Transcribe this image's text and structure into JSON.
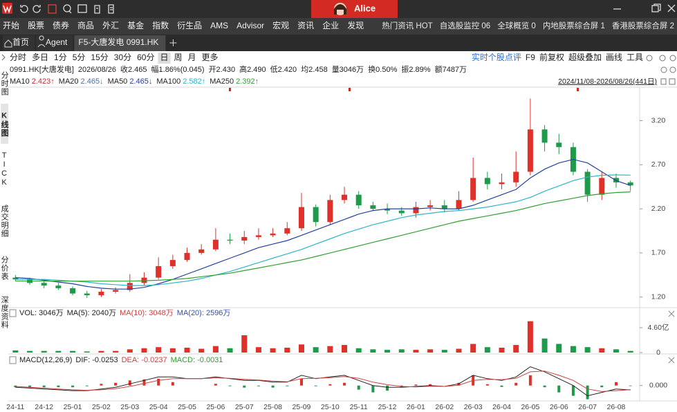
{
  "title_bar": {
    "user": "Alice"
  },
  "menu": [
    "开始",
    "股票",
    "债券",
    "商品",
    "外汇",
    "基金",
    "指数",
    "衍生品",
    "AMS",
    "Advisor",
    "宏观",
    "资讯",
    "企业",
    "发现"
  ],
  "menu_right": [
    "热门资讯 HOT",
    "自选股监控 06",
    "全球概览 0",
    "内地股票综合屏 1",
    "香港股票综合屏 2"
  ],
  "tabs": [
    "首页",
    "Agent",
    "F5-大唐发电 0991.HK"
  ],
  "periods": [
    "分时",
    "多日",
    "1分",
    "5分",
    "15分",
    "30分",
    "60分",
    "日",
    "周",
    "月",
    "更多"
  ],
  "active_period": 7,
  "tools": [
    "实时个股点评",
    "F9",
    "前复权",
    "超级叠加",
    "画线",
    "工具"
  ],
  "sidebar": [
    "分时图",
    "K线图",
    "TICK",
    "成交明细",
    "分价表",
    "深度资料"
  ],
  "sidebar_active": 1,
  "quote": [
    "0991.HK[大唐发电]",
    "2026/08/26",
    "收2.465",
    "幅1.86%(0.045)",
    "开2.430",
    "高2.490",
    "低2.420",
    "均2.458",
    "量3046万",
    "换0.50%",
    "振2.89%",
    "额7487万"
  ],
  "chart_data": [
    {
      "type": "candlestick",
      "date_range": "2024/11/08-2026/08/26(441日)",
      "categories": [
        "24-11",
        null,
        "24-12",
        null,
        "25-01",
        null,
        "25-02",
        null,
        "25-03",
        null,
        "25-04",
        null,
        "25-05",
        null,
        "25-06",
        null,
        "25-07",
        null,
        "25-08",
        null,
        "25-09",
        null,
        "25-10",
        null,
        "25-11",
        null,
        "25-12",
        null,
        "26-01",
        null,
        "26-02",
        null,
        "26-03",
        null,
        "26-04",
        null,
        "26-05",
        null,
        "26-06",
        null,
        "26-07",
        null,
        "26-08",
        null
      ],
      "open": [
        1.42,
        1.4,
        1.36,
        1.33,
        1.3,
        1.24,
        1.22,
        1.26,
        1.28,
        1.36,
        1.42,
        1.55,
        1.62,
        1.7,
        1.74,
        1.85,
        1.84,
        1.88,
        1.9,
        1.92,
        1.98,
        2.22,
        2.05,
        2.3,
        2.36,
        2.24,
        2.2,
        2.18,
        2.15,
        2.22,
        2.24,
        2.2,
        2.3,
        2.55,
        2.48,
        2.5,
        2.62,
        3.1,
        2.95,
        2.9,
        2.62,
        2.36,
        2.55,
        2.5
      ],
      "high": [
        1.45,
        1.42,
        1.38,
        1.36,
        1.32,
        1.27,
        1.29,
        1.31,
        1.46,
        1.48,
        1.65,
        1.68,
        1.76,
        1.8,
        1.98,
        1.92,
        1.95,
        1.98,
        1.98,
        2.05,
        2.38,
        2.25,
        2.36,
        2.45,
        2.4,
        2.28,
        2.26,
        2.22,
        2.28,
        2.3,
        2.3,
        2.4,
        2.78,
        2.62,
        2.6,
        2.85,
        3.45,
        3.15,
        3.05,
        2.95,
        2.65,
        2.62,
        2.6,
        2.52
      ],
      "low": [
        1.38,
        1.34,
        1.3,
        1.28,
        1.22,
        1.19,
        1.2,
        1.24,
        1.26,
        1.33,
        1.4,
        1.52,
        1.6,
        1.68,
        1.72,
        1.8,
        1.8,
        1.85,
        1.88,
        1.9,
        1.95,
        2.0,
        2.02,
        2.26,
        2.2,
        2.18,
        2.14,
        2.12,
        2.1,
        2.18,
        2.16,
        2.18,
        2.28,
        2.42,
        2.42,
        2.45,
        2.58,
        2.85,
        2.82,
        2.58,
        2.28,
        2.3,
        2.44,
        2.4
      ],
      "close": [
        1.4,
        1.36,
        1.33,
        1.3,
        1.24,
        1.22,
        1.26,
        1.28,
        1.36,
        1.42,
        1.55,
        1.62,
        1.7,
        1.74,
        1.85,
        1.84,
        1.88,
        1.9,
        1.92,
        1.98,
        2.22,
        2.05,
        2.3,
        2.36,
        2.24,
        2.2,
        2.18,
        2.15,
        2.22,
        2.24,
        2.2,
        2.3,
        2.55,
        2.48,
        2.5,
        2.62,
        3.1,
        2.95,
        2.9,
        2.62,
        2.36,
        2.55,
        2.5,
        2.465
      ],
      "up_color": "#e0302a",
      "down_color": "#1f9a4a",
      "ylim": [
        1.08,
        3.58
      ],
      "yticks": [
        {
          "value": 1.2,
          "label": "1.20"
        },
        {
          "value": 1.7,
          "label": "1.70"
        },
        {
          "value": 2.2,
          "label": "2.20"
        },
        {
          "value": 2.7,
          "label": "2.70"
        },
        {
          "value": 3.2,
          "label": "3.20"
        }
      ],
      "series": [
        {
          "name": "MA10",
          "color": "#c03030",
          "label": "2.423↑"
        },
        {
          "name": "MA20",
          "color": "#4f6f9f",
          "label": "2.465↓"
        },
        {
          "name": "MA50",
          "color": "#2040a0",
          "label": "2.465↓",
          "values": [
            1.42,
            1.41,
            1.39,
            1.37,
            1.35,
            1.32,
            1.3,
            1.29,
            1.29,
            1.31,
            1.35,
            1.4,
            1.46,
            1.52,
            1.58,
            1.64,
            1.7,
            1.76,
            1.8,
            1.84,
            1.9,
            1.96,
            2.02,
            2.08,
            2.14,
            2.18,
            2.2,
            2.2,
            2.2,
            2.21,
            2.2,
            2.2,
            2.24,
            2.3,
            2.36,
            2.42,
            2.55,
            2.65,
            2.72,
            2.76,
            2.72,
            2.62,
            2.52,
            2.465
          ]
        },
        {
          "name": "MA100",
          "color": "#2fb4c8",
          "label": "2.582↑",
          "values": [
            1.4,
            1.4,
            1.4,
            1.39,
            1.38,
            1.37,
            1.35,
            1.34,
            1.33,
            1.33,
            1.34,
            1.36,
            1.38,
            1.41,
            1.45,
            1.49,
            1.54,
            1.59,
            1.64,
            1.69,
            1.74,
            1.8,
            1.86,
            1.92,
            1.97,
            2.02,
            2.06,
            2.1,
            2.13,
            2.15,
            2.17,
            2.18,
            2.2,
            2.22,
            2.25,
            2.28,
            2.33,
            2.4,
            2.46,
            2.52,
            2.56,
            2.58,
            2.585,
            2.582
          ]
        },
        {
          "name": "MA250",
          "color": "#2fa02f",
          "label": "2.392↑",
          "values": [
            1.38,
            1.38,
            1.38,
            1.38,
            1.38,
            1.38,
            1.38,
            1.38,
            1.38,
            1.385,
            1.39,
            1.4,
            1.41,
            1.43,
            1.45,
            1.47,
            1.5,
            1.53,
            1.56,
            1.59,
            1.62,
            1.66,
            1.7,
            1.74,
            1.78,
            1.82,
            1.86,
            1.9,
            1.94,
            1.98,
            2.02,
            2.06,
            2.09,
            2.12,
            2.15,
            2.18,
            2.22,
            2.26,
            2.29,
            2.32,
            2.35,
            2.37,
            2.385,
            2.392
          ]
        }
      ]
    },
    {
      "type": "bar",
      "legend": [
        {
          "text": "VOL: 3046万",
          "color": "#222222"
        },
        {
          "text": "MA(5): 2040万",
          "color": "#222222"
        },
        {
          "text": "MA(10): 3048万",
          "color": "#d04040"
        },
        {
          "text": "MA(20): 2596万",
          "color": "#3050c0"
        }
      ],
      "values": [
        0.4,
        0.3,
        0.3,
        0.3,
        0.3,
        0.2,
        0.3,
        0.3,
        0.6,
        0.8,
        1.0,
        0.8,
        0.9,
        0.7,
        1.2,
        0.8,
        3.2,
        1.0,
        0.8,
        0.9,
        1.5,
        1.0,
        1.2,
        1.4,
        0.8,
        0.6,
        0.5,
        0.6,
        0.5,
        0.6,
        0.5,
        0.7,
        1.6,
        1.0,
        0.9,
        1.4,
        5.8,
        2.6,
        1.6,
        1.2,
        1.0,
        0.8,
        0.6,
        0.3046
      ],
      "ylim": [
        0,
        6.4
      ],
      "yticks": [
        0,
        {
          "value": 4.6,
          "label": "4.60亿"
        }
      ]
    },
    {
      "type": "macd",
      "label": "MACD(12,26,9)",
      "series": [
        {
          "legend": "DIF: -0.0253",
          "color": "#222222",
          "values": [
            -0.01,
            -0.015,
            -0.02,
            -0.025,
            -0.03,
            -0.03,
            -0.02,
            -0.01,
            0.01,
            0.03,
            0.05,
            0.05,
            0.04,
            0.04,
            0.05,
            0.04,
            0.03,
            0.03,
            0.02,
            0.02,
            0.06,
            0.04,
            0.05,
            0.06,
            0.03,
            0.0,
            -0.01,
            -0.01,
            -0.005,
            0.0,
            -0.005,
            0.01,
            0.06,
            0.04,
            0.03,
            0.05,
            0.11,
            0.08,
            0.04,
            0.0,
            -0.06,
            -0.04,
            -0.02,
            -0.0253
          ]
        },
        {
          "legend": "DEA: -0.0237",
          "color": "#d04040",
          "values": [
            -0.005,
            -0.01,
            -0.015,
            -0.02,
            -0.025,
            -0.028,
            -0.025,
            -0.018,
            -0.005,
            0.012,
            0.03,
            0.04,
            0.04,
            0.04,
            0.045,
            0.042,
            0.036,
            0.032,
            0.026,
            0.022,
            0.04,
            0.042,
            0.046,
            0.052,
            0.042,
            0.02,
            0.005,
            -0.005,
            -0.008,
            -0.004,
            -0.005,
            0.002,
            0.03,
            0.036,
            0.034,
            0.042,
            0.08,
            0.085,
            0.06,
            0.03,
            -0.02,
            -0.035,
            -0.03,
            -0.0237
          ]
        }
      ],
      "legend": "MACD: -0.0031",
      "color": "#2fa02f",
      "values": [
        -0.01,
        -0.01,
        -0.01,
        -0.01,
        -0.01,
        -0.004,
        0.01,
        0.016,
        0.03,
        0.036,
        0.04,
        0.02,
        0.0,
        0.0,
        0.01,
        -0.004,
        -0.012,
        -0.004,
        -0.012,
        -0.004,
        0.04,
        -0.004,
        0.008,
        0.016,
        -0.024,
        -0.04,
        -0.03,
        -0.01,
        0.006,
        0.008,
        0.0,
        0.016,
        0.06,
        0.008,
        -0.008,
        0.016,
        0.06,
        -0.01,
        -0.04,
        -0.06,
        -0.08,
        -0.01,
        0.02,
        -0.0031
      ],
      "ylim": [
        -0.09,
        0.12
      ],
      "yticks": [
        {
          "value": 0,
          "label": "0.000"
        }
      ]
    }
  ]
}
